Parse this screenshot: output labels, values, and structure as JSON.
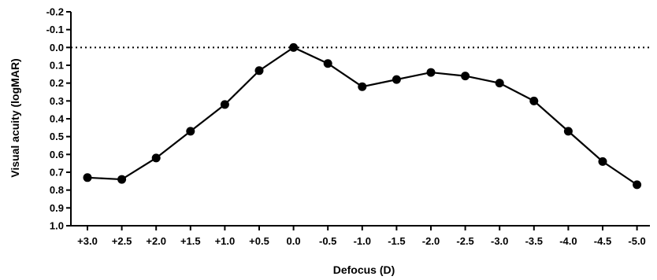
{
  "chart_data": {
    "type": "line",
    "title": "",
    "xlabel": "Defocus (D)",
    "ylabel": "Visual acuity (logMAR)",
    "categories": [
      "+3.0",
      "+2.5",
      "+2.0",
      "+1.5",
      "+1.0",
      "+0.5",
      "0.0",
      "-0.5",
      "-1.0",
      "-1.5",
      "-2.0",
      "-2.5",
      "-3.0",
      "-3.5",
      "-4.0",
      "-4.5",
      "-5.0"
    ],
    "values": [
      0.73,
      0.74,
      0.62,
      0.47,
      0.32,
      0.13,
      0.0,
      0.09,
      0.22,
      0.18,
      0.14,
      0.16,
      0.2,
      0.3,
      0.47,
      0.64,
      0.77
    ],
    "ylim": [
      -0.2,
      1.0
    ],
    "y_inverted": true,
    "yticks": [
      "-0.2",
      "-0.1",
      "0.0",
      "0.1",
      "0.2",
      "0.3",
      "0.4",
      "0.5",
      "0.6",
      "0.7",
      "0.8",
      "0.9",
      "1.0"
    ],
    "reference_line": {
      "y": 0.0,
      "style": "dotted"
    },
    "grid": false,
    "legend": "none",
    "line_color": "#000000",
    "marker_color": "#000000"
  }
}
